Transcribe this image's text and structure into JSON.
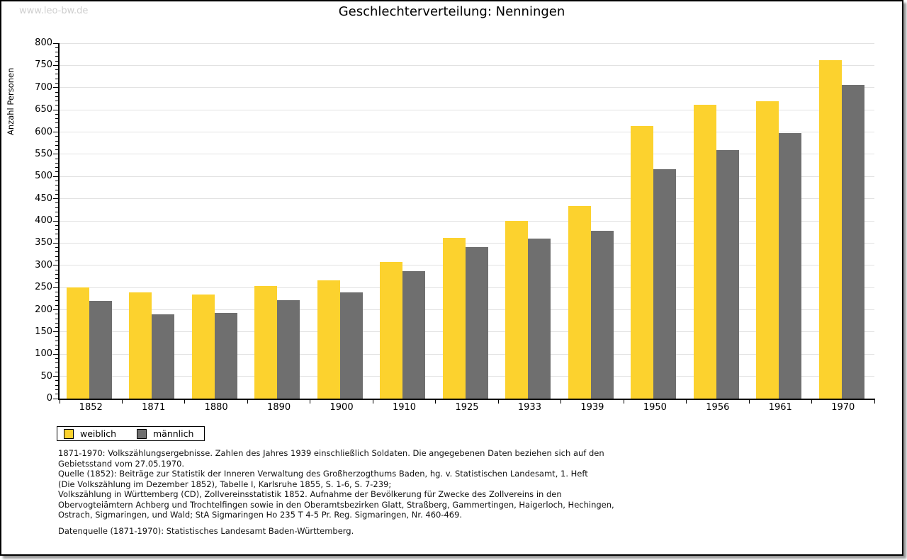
{
  "page": {
    "watermark": "www.leo-bw.de"
  },
  "chart_data": {
    "type": "bar",
    "title": "Geschlechterverteilung: Nenningen",
    "xlabel": "",
    "ylabel": "Anzahl Personen",
    "ylim": [
      0,
      800
    ],
    "y_major_step": 50,
    "y_minor_step": 10,
    "grid": "horizontal-light-gray",
    "legend_position": "bottom-left",
    "categories": [
      "1852",
      "1871",
      "1880",
      "1890",
      "1900",
      "1910",
      "1925",
      "1933",
      "1939",
      "1950",
      "1956",
      "1961",
      "1970"
    ],
    "series": [
      {
        "name": "weiblich",
        "color": "#FCD22E",
        "values": [
          250,
          239,
          235,
          253,
          266,
          307,
          362,
          400,
          433,
          614,
          662,
          670,
          762
        ]
      },
      {
        "name": "männlich",
        "color": "#6F6F6F",
        "values": [
          220,
          189,
          193,
          221,
          239,
          287,
          341,
          360,
          377,
          516,
          560,
          598,
          706
        ]
      }
    ]
  },
  "colors": {
    "weiblich": "#FCD22E",
    "maennlich": "#6F6F6F",
    "gridline": "#e2e2e2",
    "axis": "#000000",
    "watermark": "#cfcfcf",
    "page_border": "#000000",
    "shadow": "#9a9a9a"
  },
  "footnotes": {
    "lines": [
      "1871-1970: Volkszählungsergebnisse. Zahlen des Jahres 1939 einschließlich Soldaten. Die angegebenen Daten beziehen sich auf den",
      "Gebietsstand vom 27.05.1970.",
      "Quelle (1852): Beiträge zur Statistik der Inneren Verwaltung des Großherzogthums Baden, hg. v. Statistischen Landesamt, 1. Heft",
      "(Die Volkszählung im Dezember 1852), Tabelle I, Karlsruhe 1855, S. 1-6, S. 7-239;",
      "Volkszählung in Württemberg (CD), Zollvereinsstatistik 1852. Aufnahme der Bevölkerung für Zwecke des Zollvereins in den",
      "Obervogteiämtern Achberg und Trochtelfingen sowie in den Oberamtsbezirken Glatt, Straßberg, Gammertingen, Haigerloch, Hechingen,",
      "Ostrach, Sigmaringen, und Wald; StA Sigmaringen Ho 235 T 4-5 Pr. Reg. Sigmaringen, Nr. 460-469."
    ],
    "datenquelle": "Datenquelle (1871-1970): Statistisches Landesamt Baden-Württemberg."
  }
}
